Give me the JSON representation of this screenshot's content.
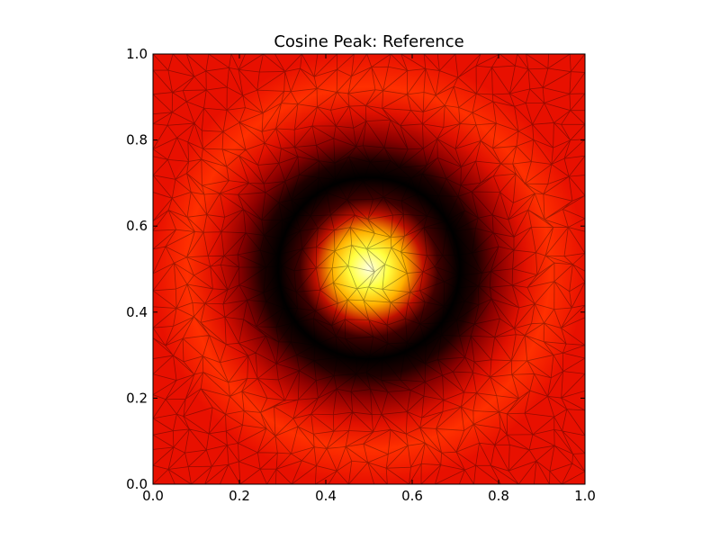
{
  "chart_data": {
    "type": "heatmap",
    "title": "Cosine Peak: Reference",
    "xlabel": "",
    "ylabel": "",
    "xlim": [
      0.0,
      1.0
    ],
    "ylim": [
      0.0,
      1.0
    ],
    "x_ticks": [
      "0.0",
      "0.2",
      "0.4",
      "0.6",
      "0.8",
      "1.0"
    ],
    "y_ticks": [
      "0.0",
      "0.2",
      "0.4",
      "0.6",
      "0.8",
      "1.0"
    ],
    "x_tick_values": [
      0.0,
      0.2,
      0.4,
      0.6,
      0.8,
      1.0
    ],
    "y_tick_values": [
      0.0,
      0.2,
      0.4,
      0.6,
      0.8,
      1.0
    ],
    "grid": false,
    "colormap": "hot",
    "peak_center": [
      0.5,
      0.5
    ],
    "dark_ring_radius": 0.2,
    "overlay": "triangular mesh",
    "colors": {
      "peak": "#ffffc0",
      "ring": "#000000",
      "background": "#ff2a00",
      "mesh": "#000000"
    }
  }
}
